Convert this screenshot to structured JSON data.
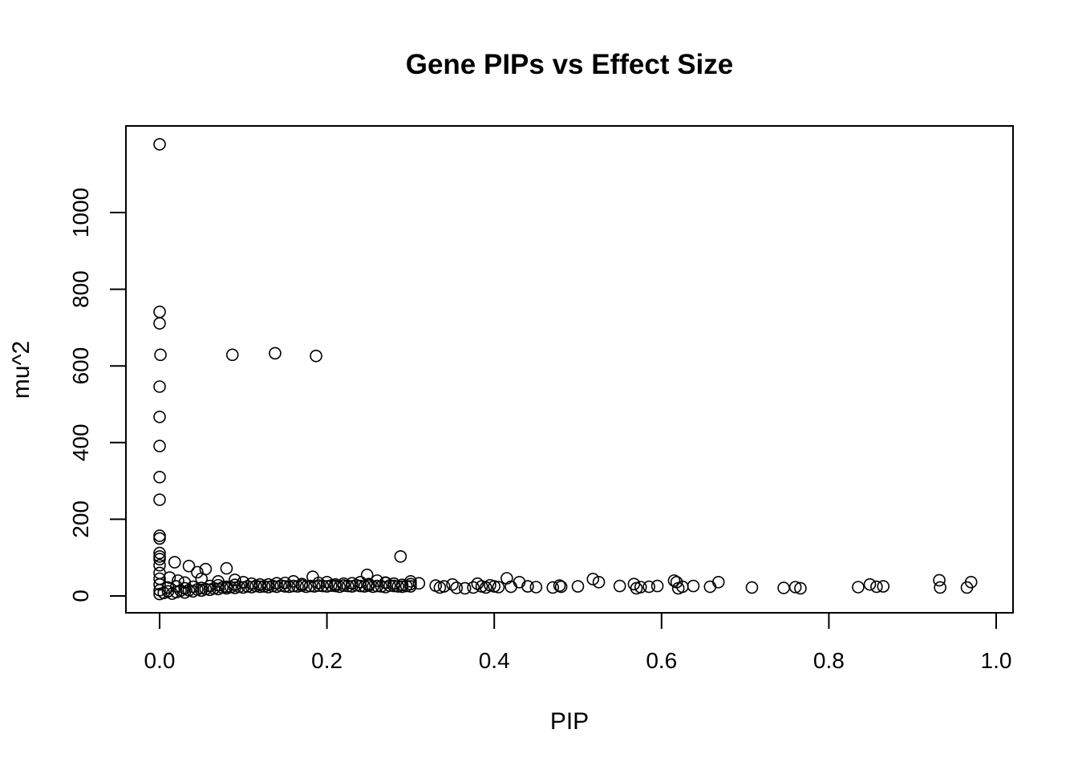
{
  "chart_data": {
    "type": "scatter",
    "title": "Gene PIPs vs Effect Size",
    "xlabel": "PIP",
    "ylabel": "mu^2",
    "xlim": [
      -0.1,
      1.02
    ],
    "ylim": [
      -40,
      1230
    ],
    "x_ticks": [
      0.0,
      0.2,
      0.4,
      0.6,
      0.8,
      1.0
    ],
    "x_tick_labels": [
      "0.0",
      "0.2",
      "0.4",
      "0.6",
      "0.8",
      "1.0"
    ],
    "y_ticks": [
      0,
      200,
      400,
      600,
      800,
      1000
    ],
    "y_tick_labels": [
      "0",
      "200",
      "400",
      "600",
      "800",
      "1000"
    ],
    "grid": false,
    "legend": "none",
    "colors": {
      "points": "#000000",
      "frame": "#000000",
      "background": "#ffffff"
    },
    "points": [
      [
        0.0,
        1178
      ],
      [
        0.0,
        741
      ],
      [
        0.0,
        711
      ],
      [
        0.001,
        629
      ],
      [
        0.0,
        546
      ],
      [
        0.0,
        467
      ],
      [
        0.0,
        391
      ],
      [
        0.0,
        310
      ],
      [
        0.0,
        251
      ],
      [
        0.0,
        157
      ],
      [
        0.0,
        150
      ],
      [
        0.0,
        112
      ],
      [
        0.0,
        103
      ],
      [
        0.0,
        96
      ],
      [
        0.0,
        80
      ],
      [
        0.0,
        60
      ],
      [
        0.0,
        45
      ],
      [
        0.0,
        30
      ],
      [
        0.0,
        15
      ],
      [
        0.0,
        5
      ],
      [
        0.087,
        629
      ],
      [
        0.138,
        633
      ],
      [
        0.187,
        626
      ],
      [
        0.288,
        103
      ],
      [
        0.018,
        88
      ],
      [
        0.035,
        78
      ],
      [
        0.055,
        70
      ],
      [
        0.08,
        72
      ],
      [
        0.045,
        62
      ],
      [
        0.012,
        48
      ],
      [
        0.022,
        40
      ],
      [
        0.03,
        35
      ],
      [
        0.05,
        45
      ],
      [
        0.07,
        38
      ],
      [
        0.09,
        42
      ],
      [
        0.1,
        36
      ],
      [
        0.12,
        30
      ],
      [
        0.15,
        34
      ],
      [
        0.16,
        38
      ],
      [
        0.183,
        50
      ],
      [
        0.2,
        36
      ],
      [
        0.22,
        32
      ],
      [
        0.248,
        55
      ],
      [
        0.26,
        40
      ],
      [
        0.27,
        35
      ],
      [
        0.3,
        38
      ],
      [
        0.31,
        33
      ],
      [
        0.005,
        8
      ],
      [
        0.01,
        12
      ],
      [
        0.015,
        6
      ],
      [
        0.02,
        10
      ],
      [
        0.025,
        14
      ],
      [
        0.03,
        9
      ],
      [
        0.035,
        15
      ],
      [
        0.04,
        12
      ],
      [
        0.045,
        17
      ],
      [
        0.05,
        14
      ],
      [
        0.055,
        18
      ],
      [
        0.06,
        16
      ],
      [
        0.065,
        20
      ],
      [
        0.07,
        18
      ],
      [
        0.075,
        22
      ],
      [
        0.08,
        20
      ],
      [
        0.085,
        23
      ],
      [
        0.09,
        21
      ],
      [
        0.095,
        24
      ],
      [
        0.1,
        22
      ],
      [
        0.105,
        25
      ],
      [
        0.11,
        23
      ],
      [
        0.115,
        26
      ],
      [
        0.12,
        24
      ],
      [
        0.125,
        25
      ],
      [
        0.13,
        23
      ],
      [
        0.135,
        26
      ],
      [
        0.14,
        24
      ],
      [
        0.145,
        27
      ],
      [
        0.15,
        25
      ],
      [
        0.155,
        24
      ],
      [
        0.16,
        26
      ],
      [
        0.165,
        25
      ],
      [
        0.17,
        27
      ],
      [
        0.175,
        24
      ],
      [
        0.18,
        26
      ],
      [
        0.185,
        25
      ],
      [
        0.19,
        27
      ],
      [
        0.195,
        26
      ],
      [
        0.2,
        25
      ],
      [
        0.205,
        27
      ],
      [
        0.21,
        26
      ],
      [
        0.215,
        24
      ],
      [
        0.22,
        27
      ],
      [
        0.225,
        26
      ],
      [
        0.23,
        25
      ],
      [
        0.235,
        28
      ],
      [
        0.24,
        26
      ],
      [
        0.245,
        25
      ],
      [
        0.25,
        27
      ],
      [
        0.255,
        24
      ],
      [
        0.26,
        26
      ],
      [
        0.265,
        25
      ],
      [
        0.27,
        23
      ],
      [
        0.275,
        27
      ],
      [
        0.28,
        26
      ],
      [
        0.285,
        25
      ],
      [
        0.29,
        24
      ],
      [
        0.295,
        26
      ],
      [
        0.3,
        25
      ],
      [
        0.01,
        22
      ],
      [
        0.02,
        25
      ],
      [
        0.03,
        20
      ],
      [
        0.04,
        24
      ],
      [
        0.05,
        21
      ],
      [
        0.06,
        26
      ],
      [
        0.07,
        28
      ],
      [
        0.08,
        24
      ],
      [
        0.09,
        29
      ],
      [
        0.11,
        32
      ],
      [
        0.13,
        30
      ],
      [
        0.14,
        33
      ],
      [
        0.17,
        31
      ],
      [
        0.19,
        34
      ],
      [
        0.21,
        30
      ],
      [
        0.23,
        33
      ],
      [
        0.24,
        36
      ],
      [
        0.25,
        31
      ],
      [
        0.27,
        34
      ],
      [
        0.28,
        32
      ],
      [
        0.29,
        29
      ],
      [
        0.3,
        31
      ],
      [
        0.33,
        27
      ],
      [
        0.335,
        22
      ],
      [
        0.34,
        25
      ],
      [
        0.35,
        30
      ],
      [
        0.355,
        21
      ],
      [
        0.365,
        20
      ],
      [
        0.375,
        22
      ],
      [
        0.38,
        32
      ],
      [
        0.385,
        25
      ],
      [
        0.39,
        22
      ],
      [
        0.395,
        28
      ],
      [
        0.4,
        25
      ],
      [
        0.405,
        23
      ],
      [
        0.415,
        46
      ],
      [
        0.42,
        24
      ],
      [
        0.43,
        36
      ],
      [
        0.44,
        25
      ],
      [
        0.45,
        23
      ],
      [
        0.47,
        22
      ],
      [
        0.478,
        27
      ],
      [
        0.48,
        24
      ],
      [
        0.5,
        25
      ],
      [
        0.518,
        44
      ],
      [
        0.525,
        36
      ],
      [
        0.55,
        26
      ],
      [
        0.567,
        31
      ],
      [
        0.57,
        20
      ],
      [
        0.575,
        23
      ],
      [
        0.585,
        24
      ],
      [
        0.595,
        26
      ],
      [
        0.615,
        40
      ],
      [
        0.618,
        36
      ],
      [
        0.62,
        20
      ],
      [
        0.625,
        24
      ],
      [
        0.638,
        26
      ],
      [
        0.658,
        24
      ],
      [
        0.668,
        36
      ],
      [
        0.708,
        22
      ],
      [
        0.746,
        21
      ],
      [
        0.76,
        23
      ],
      [
        0.766,
        20
      ],
      [
        0.835,
        23
      ],
      [
        0.849,
        30
      ],
      [
        0.857,
        24
      ],
      [
        0.865,
        25
      ],
      [
        0.932,
        41
      ],
      [
        0.933,
        22
      ],
      [
        0.965,
        22
      ],
      [
        0.97,
        36
      ]
    ]
  }
}
